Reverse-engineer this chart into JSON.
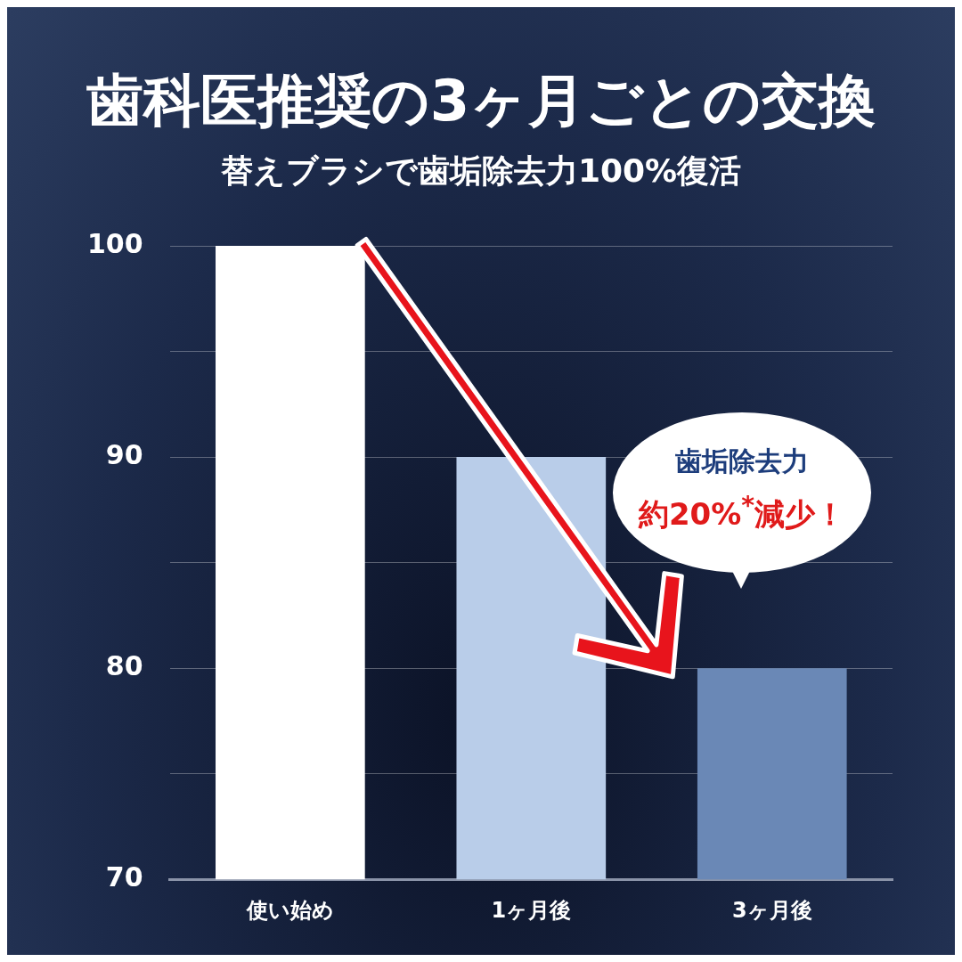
{
  "chart_data": {
    "type": "bar",
    "title": "歯科医推奨の3ヶ月ごとの交換",
    "subtitle": "替えブラシで歯垢除去力100%復活",
    "categories": [
      "使い始め",
      "1ヶ月後",
      "3ヶ月後"
    ],
    "values": [
      100,
      90,
      80
    ],
    "colors": [
      "#ffffff",
      "#b9cde9",
      "#6a88b6"
    ],
    "ylim": [
      70,
      100
    ],
    "yticks": [
      70,
      {
        "value": 75,
        "label": null
      },
      80,
      {
        "value": 85,
        "label": null
      },
      90,
      {
        "value": 95,
        "label": null
      },
      100
    ],
    "grid": "y",
    "legend": false,
    "annotations": [
      "歯垢除去力",
      "約20%$^{*}$減少！"
    ]
  }
}
